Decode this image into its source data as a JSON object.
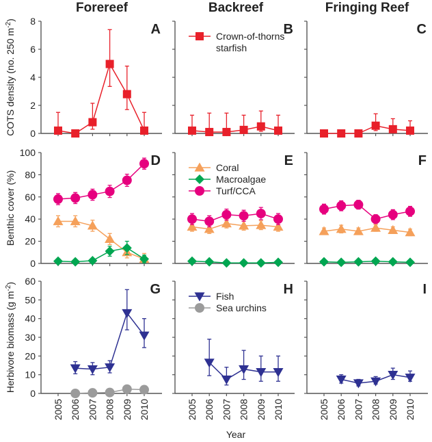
{
  "chart_data": {
    "type": "line",
    "layout": "3x3 grid of panels (rows: COTS density, benthic cover, herbivore biomass; columns: reef habitats)",
    "columns": [
      "Forereef",
      "Backreef",
      "Fringing Reef"
    ],
    "x": [
      2005,
      2006,
      2007,
      2008,
      2009,
      2010
    ],
    "xlabel": "Year",
    "x_tick_labels": [
      "2005",
      "2006",
      "2007",
      "2008",
      "2009",
      "2010"
    ],
    "rows": [
      {
        "id": "cots",
        "ylabel": "COTS density (no. 250 m",
        "ylabel_sup": "-2",
        "ylabel_tail": ")",
        "ylim": [
          0,
          8
        ],
        "y_ticks": [
          0,
          2,
          4,
          6,
          8
        ],
        "legend": {
          "panel": "B",
          "placement": "top-left",
          "entries": [
            {
              "name": "Crown-of-thorns",
              "name_line2": "starfish",
              "series": "cots"
            }
          ]
        },
        "series_defs": [
          {
            "key": "cots",
            "name": "Crown-of-thorns starfish",
            "color": "#E8202A",
            "marker": "square"
          }
        ],
        "panels": [
          {
            "letter": "A",
            "series": {
              "cots": {
                "values": [
                  0.2,
                  0.0,
                  0.8,
                  4.95,
                  2.8,
                  0.2
                ],
                "err_low": [
                  0.0,
                  0.0,
                  0.3,
                  3.35,
                  1.7,
                  0.0
                ],
                "err_high": [
                  1.5,
                  0.0,
                  2.15,
                  7.4,
                  4.8,
                  1.5
                ]
              }
            }
          },
          {
            "letter": "B",
            "series": {
              "cots": {
                "values": [
                  0.2,
                  0.1,
                  0.1,
                  0.25,
                  0.5,
                  0.2
                ],
                "err_low": [
                  0.0,
                  0.0,
                  0.0,
                  0.0,
                  0.15,
                  0.0
                ],
                "err_high": [
                  1.3,
                  1.45,
                  1.45,
                  1.3,
                  1.6,
                  1.3
                ]
              }
            }
          },
          {
            "letter": "C",
            "series": {
              "cots": {
                "values": [
                  0.0,
                  0.0,
                  0.0,
                  0.55,
                  0.3,
                  0.2
                ],
                "err_low": [
                  0.0,
                  0.0,
                  0.0,
                  0.2,
                  0.0,
                  0.0
                ],
                "err_high": [
                  0.0,
                  0.0,
                  0.0,
                  1.4,
                  1.05,
                  0.9
                ]
              }
            }
          }
        ]
      },
      {
        "id": "benthic",
        "ylabel": "Benthic cover (%)",
        "ylabel_sup": "",
        "ylabel_tail": "",
        "ylim": [
          0,
          100
        ],
        "y_ticks": [
          0,
          20,
          40,
          60,
          80,
          100
        ],
        "legend": {
          "panel": "E",
          "placement": "top-left",
          "entries": [
            {
              "name": "Coral",
              "series": "coral"
            },
            {
              "name": "Macroalgae",
              "series": "macro"
            },
            {
              "name": "Turf/CCA",
              "series": "turf"
            }
          ]
        },
        "series_defs": [
          {
            "key": "coral",
            "name": "Coral",
            "color": "#F5A05A",
            "marker": "triangle-up"
          },
          {
            "key": "macro",
            "name": "Macroalgae",
            "color": "#00A651",
            "marker": "diamond"
          },
          {
            "key": "turf",
            "name": "Turf/CCA",
            "color": "#E6007E",
            "marker": "circle"
          }
        ],
        "panels": [
          {
            "letter": "D",
            "series": {
              "coral": {
                "values": [
                  38,
                  38,
                  34,
                  22,
                  10,
                  4
                ],
                "err_low": [
                  33,
                  33,
                  29,
                  17,
                  5,
                  0
                ],
                "err_high": [
                  43,
                  43,
                  39,
                  27,
                  15,
                  9
                ]
              },
              "macro": {
                "values": [
                  2,
                  1.5,
                  2.5,
                  11,
                  14,
                  4
                ],
                "err_low": [
                  1,
                  0.5,
                  1.5,
                  6.5,
                  8,
                  0.5
                ],
                "err_high": [
                  3,
                  2.5,
                  3.5,
                  15.5,
                  20,
                  7.5
                ]
              },
              "turf": {
                "values": [
                  58,
                  59,
                  62,
                  65,
                  75,
                  90
                ],
                "err_low": [
                  53,
                  54,
                  57,
                  59.5,
                  69.5,
                  85
                ],
                "err_high": [
                  63,
                  64,
                  67,
                  70.5,
                  80.5,
                  95
                ]
              }
            }
          },
          {
            "letter": "E",
            "series": {
              "coral": {
                "values": [
                  33,
                  31,
                  36,
                  34,
                  34.5,
                  33
                ],
                "err_low": [
                  29,
                  27,
                  32,
                  30,
                  30.5,
                  29
                ],
                "err_high": [
                  37,
                  35,
                  40,
                  38,
                  38.5,
                  37
                ]
              },
              "macro": {
                "values": [
                  2,
                  1.5,
                  0.5,
                  0.5,
                  0.5,
                  1
                ],
                "err_low": [
                  1.5,
                  1,
                  0,
                  0,
                  0,
                  0.5
                ],
                "err_high": [
                  2.5,
                  2,
                  1,
                  1,
                  1,
                  1.5
                ]
              },
              "turf": {
                "values": [
                  40,
                  38,
                  44,
                  43,
                  45,
                  40
                ],
                "err_low": [
                  35,
                  33,
                  39,
                  38,
                  39.5,
                  35
                ],
                "err_high": [
                  45,
                  43,
                  49,
                  48,
                  50.5,
                  45
                ]
              }
            }
          },
          {
            "letter": "F",
            "series": {
              "coral": {
                "values": [
                  29,
                  31,
                  29,
                  32,
                  30,
                  28
                ],
                "err_low": [
                  26,
                  27.5,
                  26,
                  29,
                  27,
                  25
                ],
                "err_high": [
                  32,
                  34.5,
                  32,
                  35,
                  33,
                  31
                ]
              },
              "macro": {
                "values": [
                  1.5,
                  1,
                  1.5,
                  2,
                  1.5,
                  1
                ],
                "err_low": [
                  1,
                  0.5,
                  1,
                  1.5,
                  1,
                  0.5
                ],
                "err_high": [
                  2,
                  1.5,
                  2,
                  2.5,
                  2,
                  1.5
                ]
              },
              "turf": {
                "values": [
                  49,
                  52,
                  53,
                  40,
                  44,
                  47
                ],
                "err_low": [
                  44.5,
                  47.5,
                  49,
                  36,
                  39.5,
                  42.5
                ],
                "err_high": [
                  53.5,
                  56.5,
                  57,
                  44,
                  48.5,
                  51.5
                ]
              }
            }
          }
        ]
      },
      {
        "id": "herbivore",
        "ylabel": "Herbivore biomass (g m",
        "ylabel_sup": "-2",
        "ylabel_tail": ")",
        "ylim": [
          0,
          60
        ],
        "y_ticks": [
          0,
          10,
          20,
          30,
          40,
          50,
          60
        ],
        "legend": {
          "panel": "H",
          "placement": "top-left",
          "entries": [
            {
              "name": "Fish",
              "series": "fish"
            },
            {
              "name": "Sea urchins",
              "series": "urchin"
            }
          ]
        },
        "series_defs": [
          {
            "key": "fish",
            "name": "Fish",
            "color": "#2E3192",
            "marker": "triangle-down"
          },
          {
            "key": "urchin",
            "name": "Sea urchins",
            "color": "#9B9B9B",
            "marker": "circle"
          }
        ],
        "panels": [
          {
            "letter": "G",
            "series": {
              "fish": {
                "values": [
                  null,
                  13.5,
                  13,
                  14,
                  43,
                  31
                ],
                "err_low": [
                  null,
                  10.5,
                  10,
                  11,
                  34,
                  24.5
                ],
                "err_high": [
                  null,
                  17,
                  16.5,
                  17.5,
                  55.5,
                  40
                ]
              },
              "urchin": {
                "values": [
                  null,
                  0,
                  0.3,
                  0.5,
                  2.3,
                  2
                ],
                "err_low": [
                  null,
                  0,
                  0.3,
                  0.5,
                  2.3,
                  2
                ],
                "err_high": [
                  null,
                  0,
                  0.3,
                  0.5,
                  2.3,
                  2
                ]
              }
            }
          },
          {
            "letter": "H",
            "series": {
              "fish": {
                "values": [
                  null,
                  16.5,
                  7.5,
                  13,
                  11.5,
                  11.5
                ],
                "err_low": [
                  null,
                  9.5,
                  4.5,
                  7.5,
                  6.5,
                  6.5
                ],
                "err_high": [
                  null,
                  29,
                  14,
                  23,
                  20,
                  20
                ]
              }
            }
          },
          {
            "letter": "I",
            "series": {
              "fish": {
                "values": [
                  null,
                  7.5,
                  5.5,
                  6.5,
                  10,
                  8.5
                ],
                "err_low": [
                  null,
                  5.5,
                  4,
                  5,
                  7.5,
                  6.5
                ],
                "err_high": [
                  null,
                  10,
                  7.5,
                  9,
                  13.5,
                  12
                ]
              }
            }
          }
        ]
      }
    ]
  }
}
